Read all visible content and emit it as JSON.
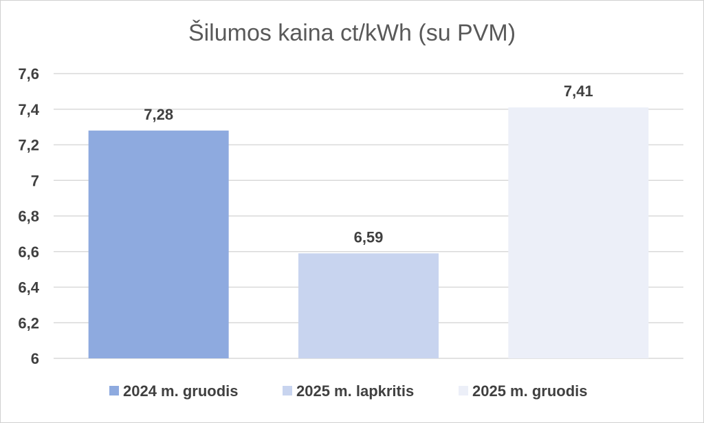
{
  "chart_data": {
    "type": "bar",
    "title": "Šilumos kaina ct/kWh (su PVM)",
    "categories": [
      "2024 m. gruodis",
      "2025 m. lapkritis",
      "2025 m. gruodis"
    ],
    "values": [
      7.28,
      6.59,
      7.41
    ],
    "value_labels": [
      "7,28",
      "6,59",
      "7,41"
    ],
    "colors": [
      "#8eaadf",
      "#c8d4ef",
      "#eceff8"
    ],
    "ylim": [
      6,
      7.6
    ],
    "yticks": [
      6,
      6.2,
      6.4,
      6.6,
      6.8,
      7,
      7.2,
      7.4,
      7.6
    ],
    "ytick_labels": [
      "6",
      "6,2",
      "6,4",
      "6,6",
      "6,8",
      "7",
      "7,2",
      "7,4",
      "7,6"
    ],
    "xlabel": "",
    "ylabel": "",
    "grid": true,
    "legend": {
      "position": "bottom",
      "entries": [
        "2024 m. gruodis",
        "2025 m. lapkritis",
        "2025 m. gruodis"
      ]
    }
  }
}
